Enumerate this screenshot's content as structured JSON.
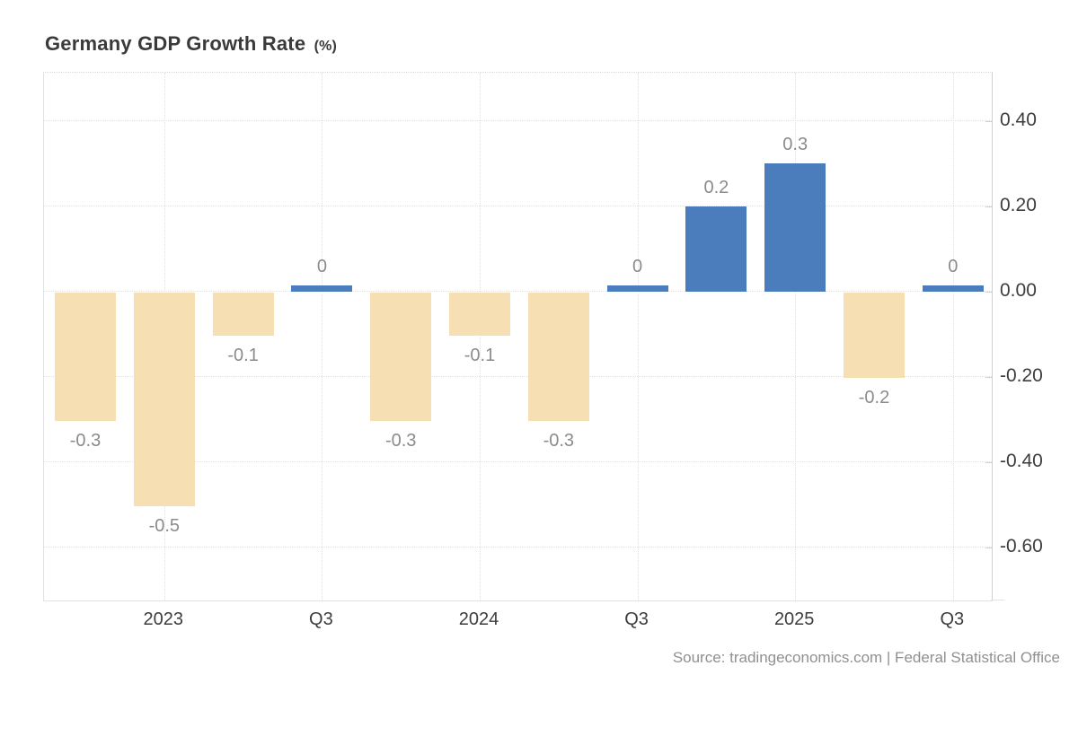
{
  "header": {
    "title": "Germany GDP Growth Rate",
    "unit": "(%)"
  },
  "source_text": "Source: tradingeconomics.com | Federal Statistical Office",
  "chart_data": {
    "type": "bar",
    "title": "Germany GDP Growth Rate (%)",
    "values": [
      -0.3,
      -0.5,
      -0.1,
      0,
      -0.3,
      -0.1,
      -0.3,
      0,
      0.2,
      0.3,
      -0.2,
      0
    ],
    "bar_labels": [
      "-0.3",
      "-0.5",
      "-0.1",
      "0",
      "-0.3",
      "-0.1",
      "-0.3",
      "0",
      "0.2",
      "0.3",
      "-0.2",
      "0"
    ],
    "x_ticks": [
      {
        "label": "2023",
        "bar_index": 1
      },
      {
        "label": "Q3",
        "bar_index": 3
      },
      {
        "label": "2024",
        "bar_index": 5
      },
      {
        "label": "Q3",
        "bar_index": 7
      },
      {
        "label": "2025",
        "bar_index": 9
      },
      {
        "label": "Q3",
        "bar_index": 11
      }
    ],
    "y_ticks": [
      {
        "label": "0.40",
        "value": 0.4
      },
      {
        "label": "0.20",
        "value": 0.2
      },
      {
        "label": "0.00",
        "value": 0.0
      },
      {
        "label": "-0.20",
        "value": -0.2
      },
      {
        "label": "-0.40",
        "value": -0.4
      },
      {
        "label": "-0.60",
        "value": -0.6
      }
    ],
    "ylim": [
      -0.72,
      0.51
    ],
    "grid": "dotted horizontal and vertical",
    "legend": "none",
    "colors": {
      "positive_bar": "#4b7dbc",
      "negative_bar": "#f5dfb3",
      "value_label": "#8b8b8b",
      "axis_text": "#3d3d3d",
      "gridline": "#e1e1e1"
    }
  }
}
